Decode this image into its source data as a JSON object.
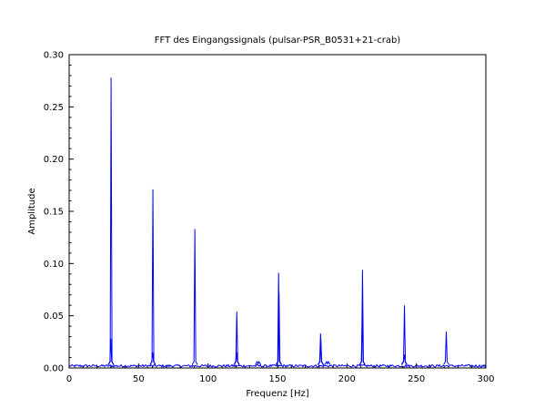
{
  "chart_data": {
    "type": "line",
    "title": "FFT des Eingangssignals (pulsar-PSR_B0531+21-crab)",
    "xlabel": "Frequenz [Hz]",
    "ylabel": "Amplitude",
    "xlim": [
      0,
      300
    ],
    "ylim": [
      0,
      0.3
    ],
    "xticks": [
      0,
      50,
      100,
      150,
      200,
      250,
      300
    ],
    "xtick_labels": [
      "0",
      "50",
      "100",
      "150",
      "200",
      "250",
      "300"
    ],
    "yticks": [
      0.0,
      0.05,
      0.1,
      0.15,
      0.2,
      0.25,
      0.3
    ],
    "ytick_labels": [
      "0.00",
      "0.05",
      "0.10",
      "0.15",
      "0.20",
      "0.25",
      "0.30"
    ],
    "grid": false,
    "legend": "none",
    "color": "#0000ff",
    "noise_floor": 0.002,
    "peaks": [
      {
        "x": 30.2,
        "y": 0.278
      },
      {
        "x": 30.0,
        "y": 0.028
      },
      {
        "x": 60.3,
        "y": 0.171
      },
      {
        "x": 60.1,
        "y": 0.015
      },
      {
        "x": 90.5,
        "y": 0.133
      },
      {
        "x": 120.7,
        "y": 0.054
      },
      {
        "x": 120.5,
        "y": 0.015
      },
      {
        "x": 150.8,
        "y": 0.091
      },
      {
        "x": 151.1,
        "y": 0.072
      },
      {
        "x": 181.0,
        "y": 0.033
      },
      {
        "x": 181.2,
        "y": 0.028
      },
      {
        "x": 211.2,
        "y": 0.094
      },
      {
        "x": 211.0,
        "y": 0.048
      },
      {
        "x": 241.4,
        "y": 0.06
      },
      {
        "x": 241.2,
        "y": 0.013
      },
      {
        "x": 271.5,
        "y": 0.035
      },
      {
        "x": 186.0,
        "y": 0.004
      },
      {
        "x": 136.0,
        "y": 0.004
      }
    ]
  }
}
